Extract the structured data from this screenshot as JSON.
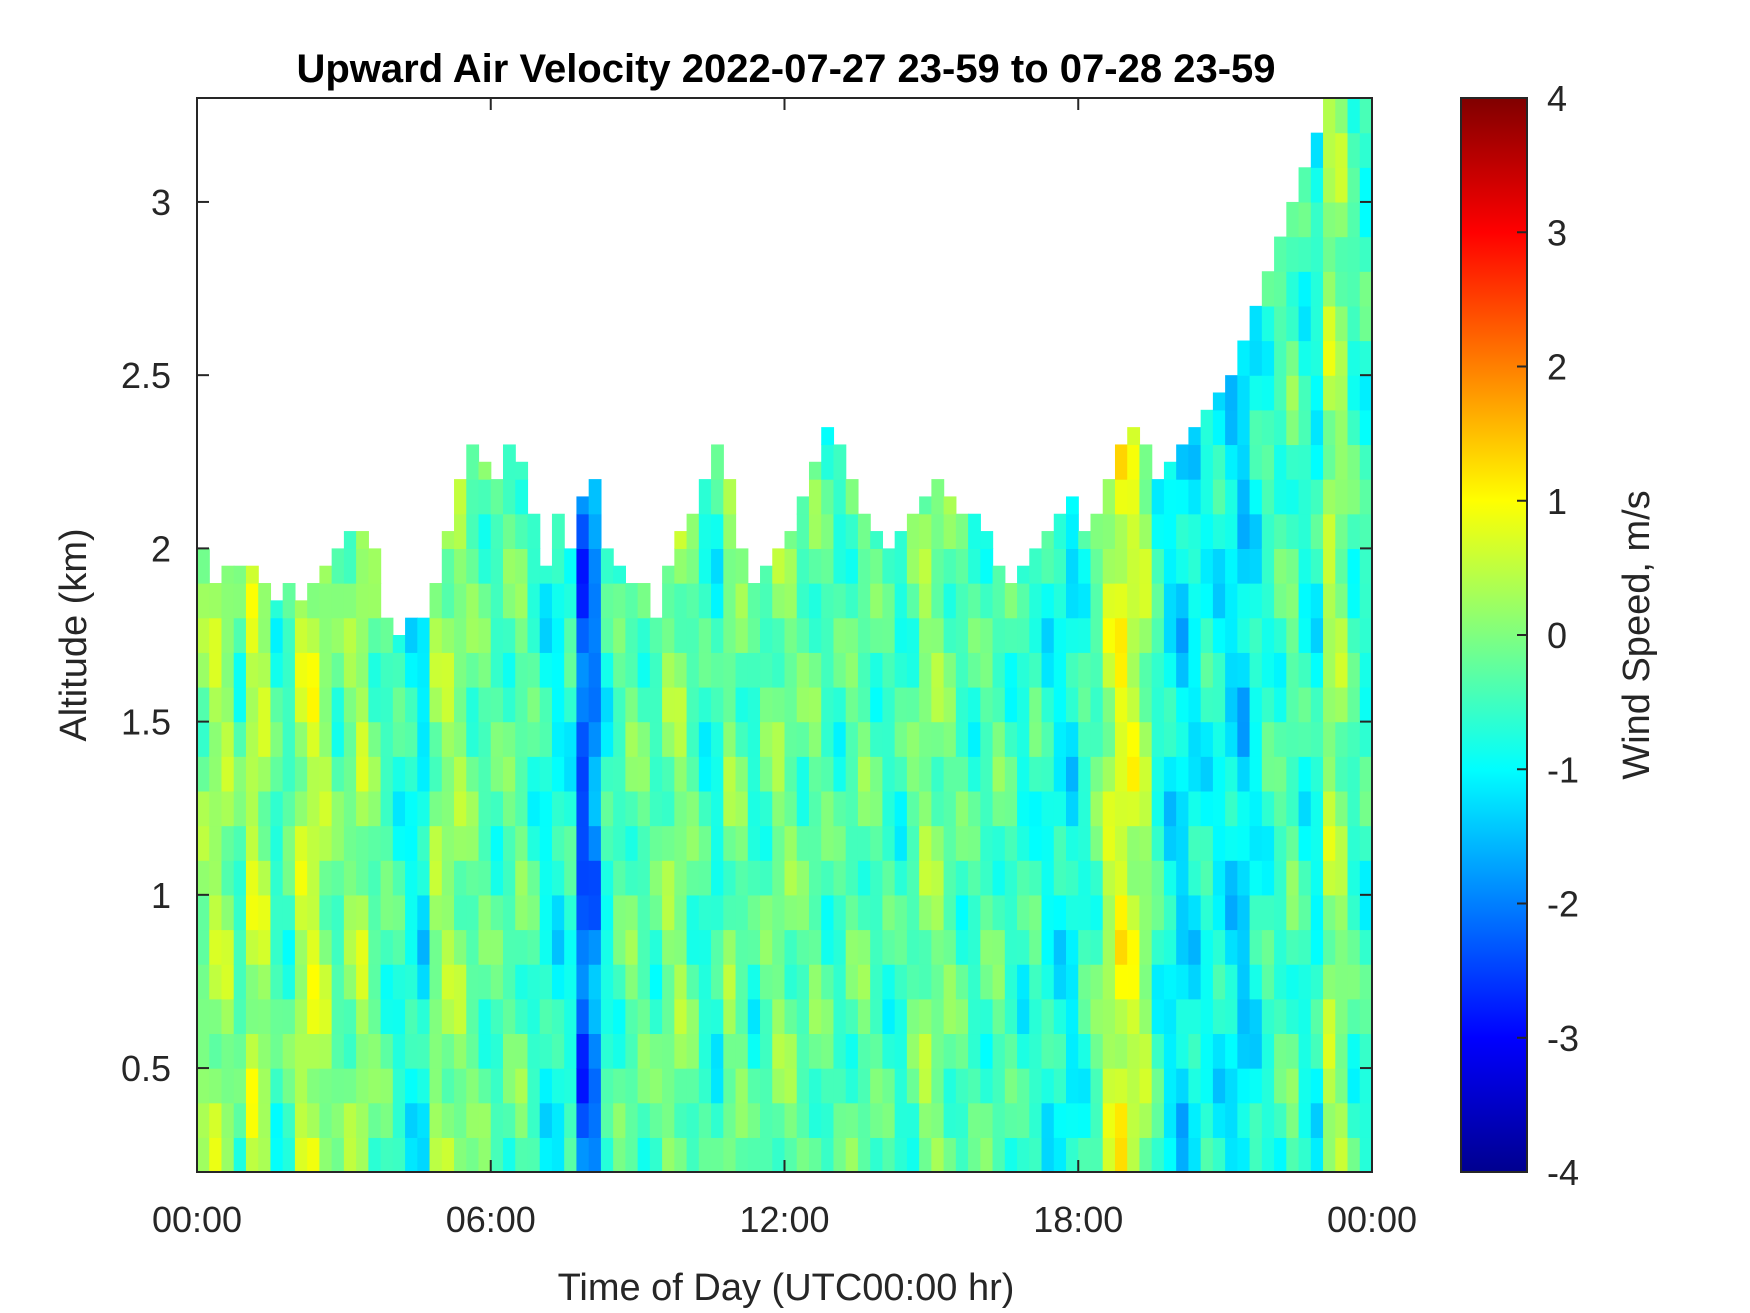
{
  "chart_data": {
    "type": "heatmap",
    "title": "Upward Air Velocity 2022-07-27 23-59 to 07-28 23-59",
    "xlabel": "Time of Day (UTC00:00 hr)",
    "ylabel": "Altitude (km)",
    "colorbar_label": "Wind Speed, m/s",
    "xlim_hours": [
      0,
      24
    ],
    "ylim_km": [
      0.2,
      3.3
    ],
    "clim": [
      -4,
      4
    ],
    "colormap": "jet",
    "x_ticks": [
      {
        "hour": 0,
        "label": "00:00"
      },
      {
        "hour": 6,
        "label": "06:00"
      },
      {
        "hour": 12,
        "label": "12:00"
      },
      {
        "hour": 18,
        "label": "18:00"
      },
      {
        "hour": 24,
        "label": "00:00"
      }
    ],
    "y_ticks": [
      {
        "value": 0.5,
        "label": "0.5"
      },
      {
        "value": 1,
        "label": "1"
      },
      {
        "value": 1.5,
        "label": "1.5"
      },
      {
        "value": 2,
        "label": "2"
      },
      {
        "value": 2.5,
        "label": "2.5"
      },
      {
        "value": 3,
        "label": "3"
      }
    ],
    "colorbar_ticks": [
      {
        "value": 4,
        "label": "4"
      },
      {
        "value": 3,
        "label": "3"
      },
      {
        "value": 2,
        "label": "2"
      },
      {
        "value": 1,
        "label": "1"
      },
      {
        "value": 0,
        "label": "0"
      },
      {
        "value": -1,
        "label": "-1"
      },
      {
        "value": -2,
        "label": "-2"
      },
      {
        "value": -3,
        "label": "-3"
      },
      {
        "value": -4,
        "label": "-4"
      }
    ],
    "x": [
      0.0,
      0.25,
      0.5,
      0.75,
      1.0,
      1.25,
      1.5,
      1.75,
      2.0,
      2.25,
      2.5,
      2.75,
      3.0,
      3.25,
      3.5,
      3.75,
      4.0,
      4.25,
      4.5,
      4.75,
      5.0,
      5.25,
      5.5,
      5.75,
      6.0,
      6.25,
      6.5,
      6.75,
      7.0,
      7.25,
      7.5,
      7.75,
      8.0,
      8.25,
      8.5,
      8.75,
      9.0,
      9.25,
      9.5,
      9.75,
      10.0,
      10.25,
      10.5,
      10.75,
      11.0,
      11.25,
      11.5,
      11.75,
      12.0,
      12.25,
      12.5,
      12.75,
      13.0,
      13.25,
      13.5,
      13.75,
      14.0,
      14.25,
      14.5,
      14.75,
      15.0,
      15.25,
      15.5,
      15.75,
      16.0,
      16.25,
      16.5,
      16.75,
      17.0,
      17.25,
      17.5,
      17.75,
      18.0,
      18.25,
      18.5,
      18.75,
      19.0,
      19.25,
      19.5,
      19.75,
      20.0,
      20.25,
      20.5,
      20.75,
      21.0,
      21.25,
      21.5,
      21.75,
      22.0,
      22.25,
      22.5,
      22.75,
      23.0,
      23.25,
      23.5,
      23.75
    ],
    "y": [
      0.2,
      0.3,
      0.4,
      0.5,
      0.6,
      0.7,
      0.8,
      0.9,
      1.0,
      1.1,
      1.2,
      1.3,
      1.4,
      1.5,
      1.6,
      1.7,
      1.8,
      1.9,
      2.0,
      2.1,
      2.2,
      2.3,
      2.4,
      2.5,
      2.6,
      2.7,
      2.8,
      2.9,
      3.0,
      3.1,
      3.2
    ],
    "data_top_km": [
      2.0,
      1.9,
      1.95,
      1.95,
      1.95,
      1.9,
      1.85,
      1.9,
      1.85,
      1.9,
      1.95,
      2.0,
      2.05,
      2.05,
      2.0,
      1.8,
      1.75,
      1.8,
      1.8,
      1.9,
      2.05,
      2.2,
      2.3,
      2.25,
      2.2,
      2.3,
      2.25,
      2.1,
      1.95,
      2.1,
      2.0,
      2.15,
      2.2,
      2.0,
      1.95,
      1.9,
      1.9,
      1.8,
      1.95,
      2.05,
      2.1,
      2.2,
      2.3,
      2.2,
      2.0,
      1.9,
      1.95,
      2.0,
      2.05,
      2.15,
      2.25,
      2.35,
      2.3,
      2.2,
      2.1,
      2.05,
      2.0,
      2.05,
      2.1,
      2.15,
      2.2,
      2.15,
      2.1,
      2.1,
      2.05,
      1.95,
      1.9,
      1.95,
      2.0,
      2.05,
      2.1,
      2.15,
      2.05,
      2.1,
      2.2,
      2.3,
      2.35,
      2.3,
      2.2,
      2.25,
      2.3,
      2.35,
      2.4,
      2.45,
      2.5,
      2.6,
      2.7,
      2.8,
      2.9,
      3.0,
      3.1,
      3.2,
      3.3,
      3.3,
      3.3,
      3.3
    ],
    "row_mean_ms": [
      0.0,
      0.3,
      0.2,
      -0.4,
      0.5,
      0.3,
      -0.5,
      -0.4,
      0.4,
      0.6,
      0.2,
      -0.3,
      0.0,
      0.3,
      -0.2,
      -0.4,
      -0.6,
      -0.8,
      -1.0,
      0.1,
      0.2,
      0.1,
      -0.2,
      -0.3,
      -0.4,
      -0.3,
      -0.2,
      -0.5,
      -0.8,
      -0.9,
      -0.7,
      -2.3,
      -1.9,
      -0.7,
      -0.4,
      -0.2,
      -0.3,
      -0.4,
      0.0,
      0.1,
      -0.3,
      -0.6,
      -0.7,
      0.0,
      -0.2,
      -0.6,
      -0.3,
      0.0,
      -0.1,
      -0.3,
      -0.2,
      -0.4,
      -0.5,
      -0.3,
      -0.2,
      -0.4,
      -0.5,
      -0.6,
      -0.3,
      0.1,
      0.0,
      -0.2,
      -0.4,
      -0.5,
      -0.4,
      -0.3,
      -0.5,
      -0.7,
      -0.5,
      -0.8,
      -0.9,
      -1.0,
      -0.6,
      -0.3,
      0.4,
      0.8,
      0.6,
      0.2,
      -0.6,
      -1.0,
      -1.2,
      -1.0,
      -0.8,
      -0.9,
      -1.1,
      -1.3,
      -0.9,
      -0.6,
      -0.5,
      -0.3,
      -0.7,
      -0.8,
      0.3,
      0.1,
      -0.5,
      -0.6
    ]
  }
}
